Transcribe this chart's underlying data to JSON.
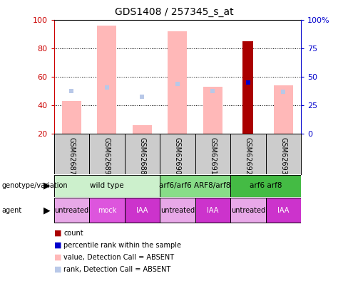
{
  "title": "GDS1408 / 257345_s_at",
  "samples": [
    "GSM62687",
    "GSM62689",
    "GSM62688",
    "GSM62690",
    "GSM62691",
    "GSM62692",
    "GSM62693"
  ],
  "value_absent": [
    43,
    96,
    26,
    92,
    53,
    null,
    54
  ],
  "rank_absent": [
    38,
    41,
    33,
    44,
    38,
    null,
    37
  ],
  "count_val": [
    null,
    null,
    null,
    null,
    null,
    85,
    null
  ],
  "percentile_rank": [
    null,
    null,
    null,
    null,
    null,
    45,
    null
  ],
  "percentile_rank_absent": [
    null,
    41,
    null,
    44,
    null,
    null,
    null
  ],
  "ylim_left": [
    20,
    100
  ],
  "yticks_left": [
    20,
    40,
    60,
    80,
    100
  ],
  "yticks_right": [
    0,
    25,
    50,
    75,
    100
  ],
  "ytick_right_labels": [
    "0",
    "25",
    "50",
    "75",
    "100%"
  ],
  "bar_width": 0.55,
  "genotype_groups": [
    {
      "label": "wild type",
      "cols": [
        0,
        1,
        2
      ],
      "color": "#ccf0cc"
    },
    {
      "label": "arf6/arf6 ARF8/arf8",
      "cols": [
        3,
        4
      ],
      "color": "#88dd88"
    },
    {
      "label": "arf6 arf8",
      "cols": [
        5,
        6
      ],
      "color": "#44bb44"
    }
  ],
  "agent_groups": [
    {
      "label": "untreated",
      "col": 0,
      "color": "#e8a8e8"
    },
    {
      "label": "mock",
      "col": 1,
      "color": "#dd55dd"
    },
    {
      "label": "IAA",
      "col": 2,
      "color": "#cc33cc"
    },
    {
      "label": "untreated",
      "col": 3,
      "color": "#e8a8e8"
    },
    {
      "label": "IAA",
      "col": 4,
      "color": "#cc33cc"
    },
    {
      "label": "untreated",
      "col": 5,
      "color": "#e8a8e8"
    },
    {
      "label": "IAA",
      "col": 6,
      "color": "#cc33cc"
    }
  ],
  "colors": {
    "count": "#aa0000",
    "percentile_rank": "#0000cc",
    "value_absent": "#ffb8b8",
    "rank_absent": "#b8c8e8",
    "axis_left": "#cc0000",
    "axis_right": "#0000cc",
    "bg_samples": "#cccccc"
  }
}
